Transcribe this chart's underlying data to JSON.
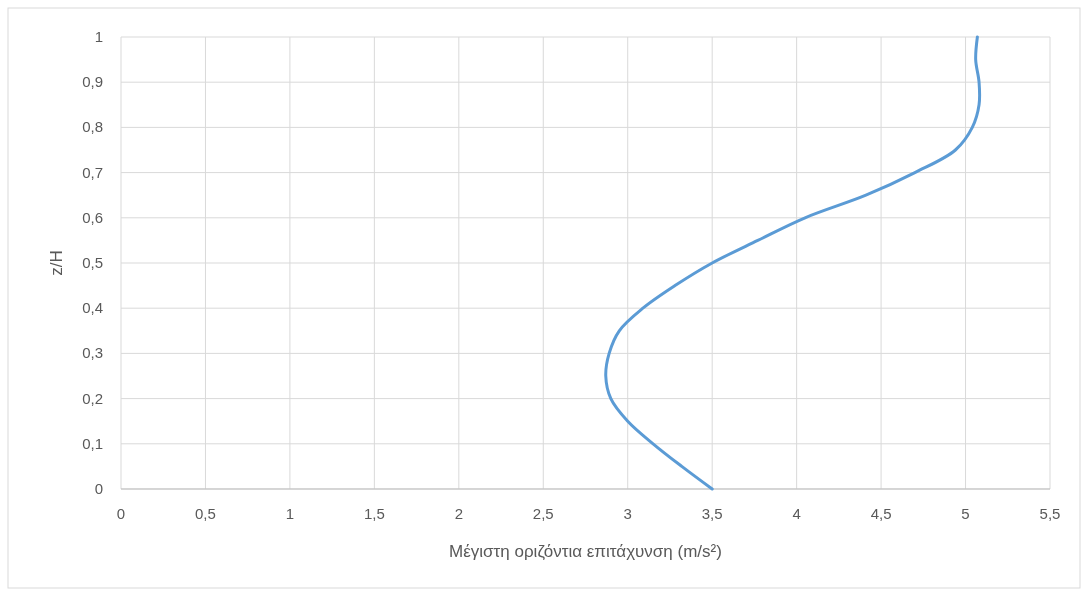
{
  "chart_data": {
    "type": "line",
    "xlabel": "Μέγιστη οριζόντια επιτάχυνση (m/s²)",
    "ylabel": "z/H",
    "xlim": [
      0,
      5.5
    ],
    "xticks": [
      0,
      {
        "value": 0.5,
        "label": "0,5"
      },
      1,
      {
        "value": 1.5,
        "label": "1,5"
      },
      2,
      {
        "value": 2.5,
        "label": "2,5"
      },
      3,
      {
        "value": 3.5,
        "label": "3,5"
      },
      4,
      {
        "value": 4.5,
        "label": "4,5"
      },
      5,
      {
        "value": 5.5,
        "label": "5,5"
      }
    ],
    "ylim": [
      0,
      1
    ],
    "yticks": [
      0,
      {
        "value": 0.1,
        "label": "0,1"
      },
      {
        "value": 0.2,
        "label": "0,2"
      },
      {
        "value": 0.3,
        "label": "0,3"
      },
      {
        "value": 0.4,
        "label": "0,4"
      },
      {
        "value": 0.5,
        "label": "0,5"
      },
      {
        "value": 0.6,
        "label": "0,6"
      },
      {
        "value": 0.7,
        "label": "0,7"
      },
      {
        "value": 0.8,
        "label": "0,8"
      },
      {
        "value": 0.9,
        "label": "0,9"
      },
      1
    ],
    "grid": true,
    "series": [
      {
        "color": "#5b9bd5",
        "x": [
          3.5,
          3.32,
          3.15,
          3.0,
          2.9,
          2.87,
          2.89,
          2.95,
          3.09,
          3.28,
          3.5,
          3.77,
          4.05,
          4.41,
          4.7,
          4.94,
          5.04,
          5.08,
          5.08,
          5.06,
          5.07
        ],
        "values": [
          0,
          0.05,
          0.1,
          0.15,
          0.2,
          0.25,
          0.3,
          0.35,
          0.4,
          0.45,
          0.5,
          0.55,
          0.6,
          0.65,
          0.7,
          0.75,
          0.8,
          0.85,
          0.9,
          0.95,
          1
        ]
      }
    ]
  }
}
